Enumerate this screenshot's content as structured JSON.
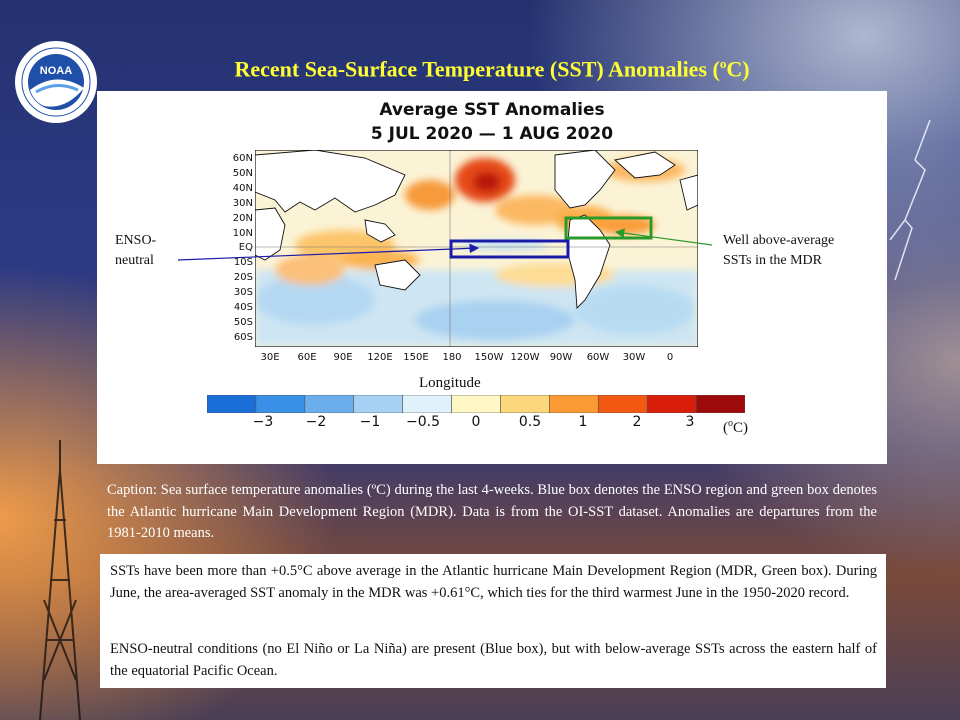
{
  "slide": {
    "title_main": "Recent Sea-Surface Temperature (SST) Anomalies (",
    "title_sup": "o",
    "title_end": "C)",
    "logo_text": "NOAA"
  },
  "colors": {
    "title": "#ffff33",
    "enso_box": "#1a1aa8",
    "mdr_box": "#2a9a2a",
    "background_top": "#1d2a6a",
    "background_bottom": "#c56a22"
  },
  "figure": {
    "heading_line1": "Average SST Anomalies",
    "heading_line2": "5 JUL 2020 — 1 AUG 2020",
    "lat_labels": [
      "60N",
      "50N",
      "40N",
      "30N",
      "20N",
      "10N",
      "EQ",
      "10S",
      "20S",
      "30S",
      "40S",
      "50S",
      "60S"
    ],
    "lon_labels": [
      "30E",
      "60E",
      "90E",
      "120E",
      "150E",
      "180",
      "150W",
      "120W",
      "90W",
      "60W",
      "30W",
      "0"
    ],
    "axis_word": "Longitude",
    "colorbar": {
      "colors": [
        "#1a6ed8",
        "#3a8fe6",
        "#6aaeee",
        "#a6d0f4",
        "#dff1fb",
        "#fff7c6",
        "#fdd77c",
        "#fb9a32",
        "#f25a12",
        "#d81e0a",
        "#9e0a0a"
      ],
      "ticks": [
        "−3",
        "−2",
        "−1",
        "−0.5",
        "0",
        "0.5",
        "1",
        "2",
        "3"
      ],
      "unit_open": "(",
      "unit_sup": "o",
      "unit_close": "C)"
    },
    "callouts": {
      "enso_line1": "ENSO-",
      "enso_line2": "neutral",
      "mdr_line1": "Well above-average",
      "mdr_line2": "SSTs in the MDR"
    }
  },
  "caption": "Caption: Sea surface temperature anomalies (ºC) during the last 4-weeks. Blue box denotes the ENSO region and green box denotes the Atlantic hurricane Main Development Region (MDR). Data is from the OI-SST dataset. Anomalies are departures from the 1981-2010 means.",
  "summary": {
    "p1": "SSTs have been more than +0.5°C above average in the Atlantic hurricane Main Development Region (MDR, Green box). During June, the area-averaged SST anomaly in the MDR was +0.61°C, which ties for the third warmest June in the 1950-2020 record.",
    "p2": "ENSO-neutral conditions (no El Niño or La Niña) are present (Blue box), but with below-average SSTs across the eastern half of the equatorial Pacific Ocean."
  }
}
